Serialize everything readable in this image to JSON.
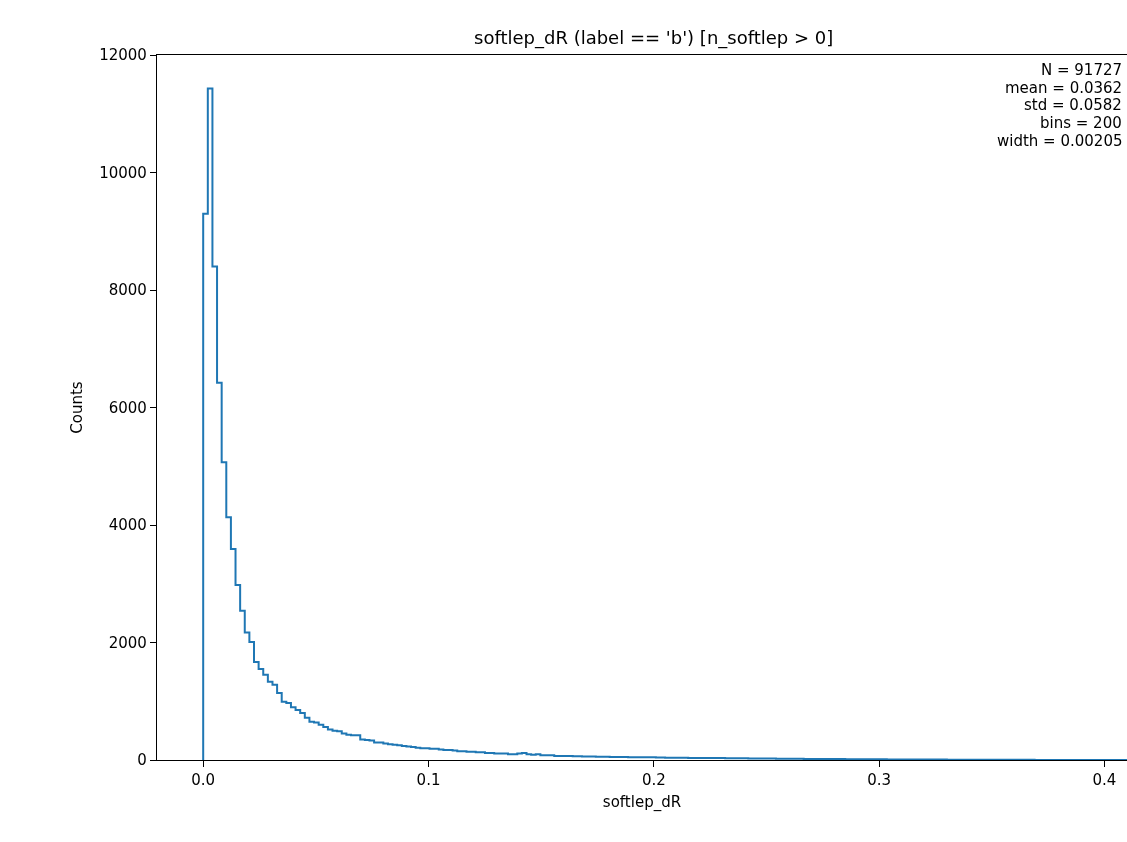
{
  "chart_data": {
    "type": "histogram",
    "title": "softlep_dR (label == 'b') [n_softlep > 0]",
    "xlabel": "softlep_dR",
    "ylabel": "Counts",
    "annotations": [
      "N = 91727",
      "mean = 0.0362",
      "std = 0.0582",
      "bins = 200",
      "width = 0.00205"
    ],
    "color": "#1f77b4",
    "bins": [
      0,
      0.00205,
      0.0041,
      0.00615,
      0.0082,
      0.01025,
      0.0123,
      0.01435,
      0.0164,
      0.01845,
      0.0205,
      0.02255,
      0.0246,
      0.02665,
      0.0287,
      0.03075,
      0.0328,
      0.03485,
      0.0369,
      0.03895,
      0.041,
      0.04305,
      0.0451,
      0.04715,
      0.0492,
      0.05125,
      0.0533,
      0.05535,
      0.0574,
      0.05945,
      0.0615,
      0.06355,
      0.0656,
      0.06765,
      0.0697,
      0.07175,
      0.0738,
      0.07585,
      0.0779,
      0.07995,
      0.082,
      0.08405,
      0.0861,
      0.08815,
      0.0902,
      0.09225,
      0.0943,
      0.09635,
      0.0984,
      0.10045,
      0.1025,
      0.10455,
      0.1066,
      0.10865,
      0.1107,
      0.11275,
      0.1148,
      0.11685,
      0.1189,
      0.12095,
      0.123,
      0.12505,
      0.1271,
      0.12915,
      0.1312,
      0.13325,
      0.1353,
      0.13735,
      0.1394,
      0.14145,
      0.1435,
      0.14555,
      0.1476,
      0.14965,
      0.1517,
      0.15375,
      0.1558,
      0.15785,
      0.1599,
      0.16195,
      0.164,
      0.16605,
      0.1681,
      0.17015,
      0.1722,
      0.17425,
      0.1763,
      0.17835,
      0.1804,
      0.18245,
      0.1845,
      0.18655,
      0.1886,
      0.19065,
      0.1927,
      0.19475,
      0.1968,
      0.19885,
      0.2009,
      0.20295,
      0.205,
      0.20705,
      0.2091,
      0.21115,
      0.2132,
      0.21525,
      0.2173,
      0.21935,
      0.2214,
      0.22345,
      0.2255,
      0.22755,
      0.2296,
      0.23165,
      0.2337,
      0.23575,
      0.2378,
      0.23985,
      0.2419,
      0.24395,
      0.246,
      0.24805,
      0.2501,
      0.25215,
      0.2542,
      0.25625,
      0.2583,
      0.26035,
      0.2624,
      0.26445,
      0.2665,
      0.26855,
      0.2706,
      0.27265,
      0.2747,
      0.27675,
      0.2788,
      0.28085,
      0.2829,
      0.28495,
      0.287,
      0.28905,
      0.2911,
      0.29315,
      0.2952,
      0.29725,
      0.2993,
      0.30135,
      0.3034,
      0.30545,
      0.3075,
      0.30955,
      0.3116,
      0.31365,
      0.3157,
      0.31775,
      0.3198,
      0.32185,
      0.3239,
      0.32595,
      0.328,
      0.33005,
      0.3321,
      0.33415,
      0.3362,
      0.33825,
      0.3403,
      0.34235,
      0.3444,
      0.34645,
      0.3485,
      0.35055,
      0.3526,
      0.35465,
      0.3567,
      0.35875,
      0.3608,
      0.36285,
      0.3649,
      0.36695,
      0.369,
      0.37105,
      0.3731,
      0.37515,
      0.3772,
      0.37925,
      0.3813,
      0.38335,
      0.3854,
      0.38745,
      0.3895,
      0.39155,
      0.3936,
      0.39565,
      0.3977,
      0.39975,
      0.4018,
      0.40385,
      0.4059,
      0.40795,
      0.41
    ],
    "values": [
      9300,
      11430,
      8400,
      6420,
      5070,
      4130,
      3590,
      2980,
      2540,
      2170,
      2010,
      1670,
      1550,
      1450,
      1330,
      1280,
      1140,
      990,
      970,
      900,
      850,
      800,
      720,
      650,
      640,
      600,
      560,
      520,
      500,
      490,
      450,
      430,
      420,
      420,
      350,
      340,
      330,
      300,
      300,
      280,
      270,
      260,
      250,
      240,
      230,
      220,
      210,
      200,
      200,
      190,
      190,
      180,
      170,
      170,
      160,
      150,
      150,
      140,
      140,
      130,
      130,
      120,
      120,
      110,
      110,
      110,
      100,
      100,
      110,
      120,
      100,
      90,
      100,
      80,
      80,
      80,
      70,
      70,
      70,
      70,
      65,
      65,
      60,
      60,
      60,
      55,
      55,
      55,
      50,
      50,
      50,
      50,
      48,
      48,
      45,
      45,
      45,
      45,
      42,
      42,
      40,
      40,
      40,
      38,
      38,
      36,
      36,
      35,
      35,
      34,
      33,
      32,
      32,
      30,
      30,
      30,
      28,
      28,
      27,
      26,
      26,
      25,
      24,
      24,
      23,
      22,
      22,
      21,
      20,
      20,
      19,
      18,
      18,
      17,
      17,
      16,
      16,
      15,
      15,
      14,
      14,
      13,
      13,
      12,
      12,
      12,
      11,
      11,
      10,
      10,
      10,
      9,
      9,
      9,
      8,
      8,
      8,
      7,
      7,
      7,
      7,
      6,
      6,
      6,
      6,
      5,
      5,
      5,
      5,
      5,
      4,
      4,
      4,
      4,
      4,
      3,
      3,
      3,
      3,
      3,
      2,
      2,
      2,
      1,
      1,
      1,
      1,
      1,
      0,
      0,
      0,
      0,
      0,
      0,
      0,
      0,
      0,
      0,
      0,
      0
    ],
    "xlim": [
      -0.0205,
      0.41
    ],
    "xticks": [
      {
        "value": 0,
        "label": "0.0"
      },
      {
        "value": 0.1,
        "label": "0.1"
      },
      {
        "value": 0.2,
        "label": "0.2"
      },
      {
        "value": 0.3,
        "label": "0.3"
      },
      {
        "value": 0.4,
        "label": "0.4"
      }
    ],
    "ylim": [
      0,
      12000
    ],
    "yticks": [
      0,
      2000,
      4000,
      6000,
      8000,
      10000,
      12000
    ]
  }
}
